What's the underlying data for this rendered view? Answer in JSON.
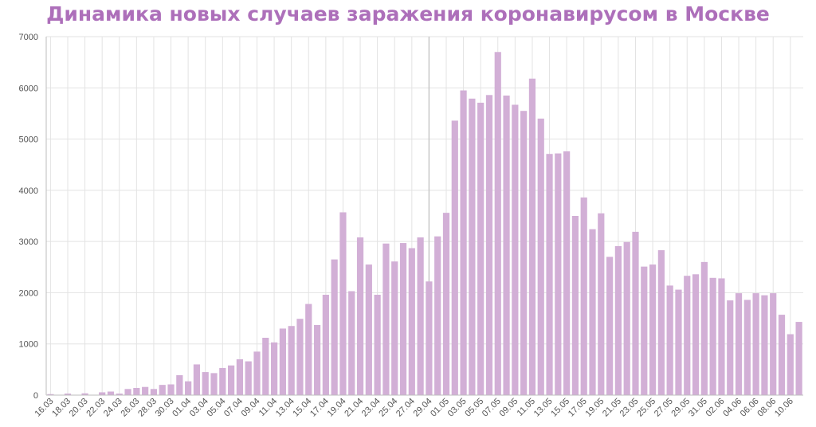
{
  "colors": {
    "bar": "#d2afd6",
    "title": "#ad6fba",
    "grid": "#e3e3e3",
    "axis": "#bdbdbd",
    "marker": "#c6c6c6"
  },
  "chart_data": {
    "type": "bar",
    "title": "Динамика новых случаев заражения коронавирусом в Москве",
    "xlabel": "",
    "ylabel": "",
    "ylim": [
      0,
      7000
    ],
    "yticks": [
      0,
      1000,
      2000,
      3000,
      4000,
      5000,
      6000,
      7000
    ],
    "grid": true,
    "legend": "none",
    "x_tick_labels": [
      "16.03",
      "18.03",
      "20.03",
      "22.03",
      "24.03",
      "26.03",
      "28.03",
      "30.03",
      "01.04",
      "03.04",
      "05.04",
      "07.04",
      "09.04",
      "11.04",
      "13.04",
      "15.04",
      "17.04",
      "19.04",
      "21.04",
      "23.04",
      "25.04",
      "27.04",
      "29.04",
      "01.05",
      "03.05",
      "05.05",
      "07.05",
      "09.05",
      "11.05",
      "13.05",
      "15.05",
      "17.05",
      "19.05",
      "21.05",
      "23.05",
      "25.05",
      "27.05",
      "29.05",
      "31.05",
      "02.06",
      "04.06",
      "06.06",
      "08.06",
      "10.06"
    ],
    "categories": [
      "16.03",
      "17.03",
      "18.03",
      "19.03",
      "20.03",
      "21.03",
      "22.03",
      "23.03",
      "24.03",
      "25.03",
      "26.03",
      "27.03",
      "28.03",
      "29.03",
      "30.03",
      "31.03",
      "01.04",
      "02.04",
      "03.04",
      "04.04",
      "05.04",
      "06.04",
      "07.04",
      "08.04",
      "09.04",
      "10.04",
      "11.04",
      "12.04",
      "13.04",
      "14.04",
      "15.04",
      "16.04",
      "17.04",
      "18.04",
      "19.04",
      "20.04",
      "21.04",
      "22.04",
      "23.04",
      "24.04",
      "25.04",
      "26.04",
      "27.04",
      "28.04",
      "29.04",
      "30.04",
      "01.05",
      "02.05",
      "03.05",
      "04.05",
      "05.05",
      "06.05",
      "07.05",
      "08.05",
      "09.05",
      "10.05",
      "11.05",
      "12.05",
      "13.05",
      "14.05",
      "15.05",
      "16.05",
      "17.05",
      "18.05",
      "19.05",
      "20.05",
      "21.05",
      "22.05",
      "23.05",
      "24.05",
      "25.05",
      "26.05",
      "27.05",
      "28.05",
      "29.05",
      "30.05",
      "31.05",
      "01.06",
      "02.06",
      "03.06",
      "04.06",
      "05.06",
      "06.06",
      "07.06",
      "08.06",
      "09.06",
      "10.06",
      "11.06"
    ],
    "values": [
      20,
      5,
      30,
      5,
      35,
      5,
      55,
      70,
      30,
      120,
      140,
      160,
      120,
      200,
      210,
      390,
      270,
      600,
      450,
      430,
      530,
      580,
      700,
      660,
      850,
      1120,
      1030,
      1300,
      1350,
      1490,
      1780,
      1370,
      1960,
      2650,
      3570,
      2030,
      3080,
      2550,
      1960,
      2960,
      2610,
      2970,
      2870,
      3080,
      2220,
      3100,
      3560,
      5360,
      5950,
      5790,
      5710,
      5860,
      6700,
      5850,
      5670,
      5550,
      6180,
      5400,
      4710,
      4720,
      4760,
      3500,
      3860,
      3240,
      3550,
      2700,
      2910,
      2990,
      3190,
      2510,
      2550,
      2830,
      2140,
      2060,
      2330,
      2360,
      2600,
      2290,
      2280,
      1850,
      1990,
      1860,
      1990,
      1950,
      1990,
      1570,
      1190,
      1430
    ]
  }
}
